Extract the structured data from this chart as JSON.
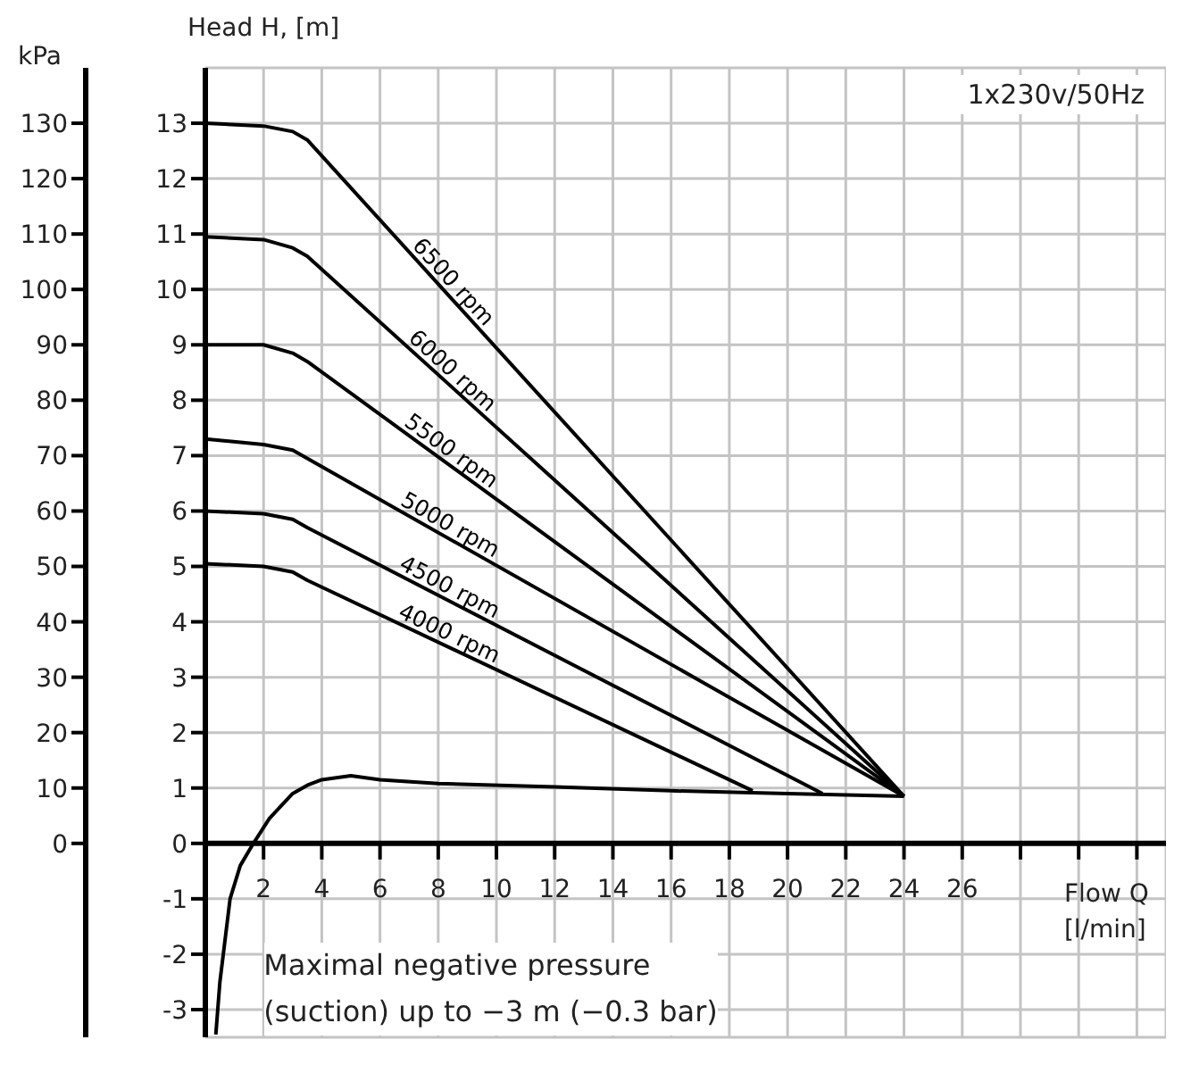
{
  "chart_data": {
    "type": "line",
    "ylabel": "Head H, [m]",
    "y2label": "kPa",
    "xlabel": "Flow Q [l/min]",
    "xlim": [
      0,
      33
    ],
    "xticks": [
      2,
      4,
      6,
      8,
      10,
      12,
      14,
      16,
      18,
      20,
      22,
      24,
      26,
      {
        "value": 28,
        "label": null
      },
      {
        "value": 30,
        "label": null
      },
      {
        "value": 32,
        "label": null
      }
    ],
    "ylim": [
      -3.5,
      14
    ],
    "yticks": [
      -3,
      -2,
      -1,
      0,
      1,
      2,
      3,
      4,
      5,
      6,
      7,
      8,
      9,
      10,
      11,
      12,
      13
    ],
    "y2lim": [
      -35,
      140
    ],
    "y2ticks": [
      0,
      10,
      20,
      30,
      40,
      50,
      60,
      70,
      80,
      90,
      100,
      110,
      120,
      130
    ],
    "grid": true,
    "marker": "none",
    "line_style": "solid",
    "series": [
      {
        "name": "6500 rpm",
        "color": "#000000",
        "x": [
          0,
          2,
          3,
          3.5,
          24
        ],
        "values": [
          13,
          12.95,
          12.85,
          12.7,
          0.85
        ]
      },
      {
        "name": "6000 rpm",
        "color": "#000000",
        "x": [
          0,
          2,
          3,
          3.5,
          24
        ],
        "values": [
          10.95,
          10.9,
          10.75,
          10.6,
          0.85
        ]
      },
      {
        "name": "5500 rpm",
        "color": "#000000",
        "x": [
          0,
          2,
          3,
          3.5,
          24
        ],
        "values": [
          9,
          9,
          8.85,
          8.7,
          0.85
        ]
      },
      {
        "name": "5000 rpm",
        "color": "#000000",
        "x": [
          0,
          2,
          3,
          3.5,
          24
        ],
        "values": [
          7.3,
          7.2,
          7.1,
          6.95,
          0.85
        ]
      },
      {
        "name": "4500 rpm",
        "color": "#000000",
        "x": [
          0,
          2,
          3,
          3.5,
          21.2
        ],
        "values": [
          6,
          5.95,
          5.85,
          5.7,
          0.9
        ]
      },
      {
        "name": "4000 rpm",
        "color": "#000000",
        "x": [
          0,
          2,
          3,
          3.5,
          18.8
        ],
        "values": [
          5.05,
          5,
          4.9,
          4.75,
          0.95
        ]
      },
      {
        "color": "#000000",
        "x": [
          0.36,
          0.5,
          0.85,
          1.2,
          1.65,
          2.2,
          3,
          3.5,
          4,
          5,
          6,
          8,
          12,
          16,
          20,
          24
        ],
        "values": [
          -3.45,
          -2.5,
          -1,
          -0.4,
          0,
          0.45,
          0.9,
          1.05,
          1.15,
          1.22,
          1.15,
          1.08,
          1.02,
          0.95,
          0.9,
          0.85
        ]
      }
    ],
    "annotations": [
      "1x230v/50Hz",
      "Maximal negative pressure\n(suction) up to −3 m (−0.3 bar)"
    ]
  }
}
